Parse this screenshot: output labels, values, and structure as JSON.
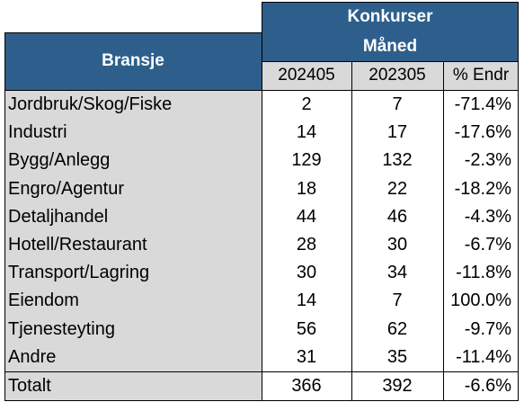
{
  "header": {
    "bransje": "Bransje",
    "konkurser": "Konkurser",
    "maaned": "Måned",
    "col1": "202405",
    "col2": "202305",
    "col3": "% Endr"
  },
  "rows": [
    {
      "bransje": "Jordbruk/Skog/Fiske",
      "v2024": "2",
      "v2023": "7",
      "endr": "-71.4%"
    },
    {
      "bransje": "Industri",
      "v2024": "14",
      "v2023": "17",
      "endr": "-17.6%"
    },
    {
      "bransje": "Bygg/Anlegg",
      "v2024": "129",
      "v2023": "132",
      "endr": "-2.3%"
    },
    {
      "bransje": "Engro/Agentur",
      "v2024": "18",
      "v2023": "22",
      "endr": "-18.2%"
    },
    {
      "bransje": "Detaljhandel",
      "v2024": "44",
      "v2023": "46",
      "endr": "-4.3%"
    },
    {
      "bransje": "Hotell/Restaurant",
      "v2024": "28",
      "v2023": "30",
      "endr": "-6.7%"
    },
    {
      "bransje": "Transport/Lagring",
      "v2024": "30",
      "v2023": "34",
      "endr": "-11.8%"
    },
    {
      "bransje": "Eiendom",
      "v2024": "14",
      "v2023": "7",
      "endr": "100.0%"
    },
    {
      "bransje": "Tjenesteyting",
      "v2024": "56",
      "v2023": "62",
      "endr": "-9.7%"
    },
    {
      "bransje": "Andre",
      "v2024": "31",
      "v2023": "35",
      "endr": "-11.4%"
    }
  ],
  "total": {
    "bransje": "Totalt",
    "v2024": "366",
    "v2023": "392",
    "endr": "-6.6%"
  },
  "colors": {
    "header_blue": "#2e5f8c",
    "label_gray": "#d9d9d9"
  }
}
